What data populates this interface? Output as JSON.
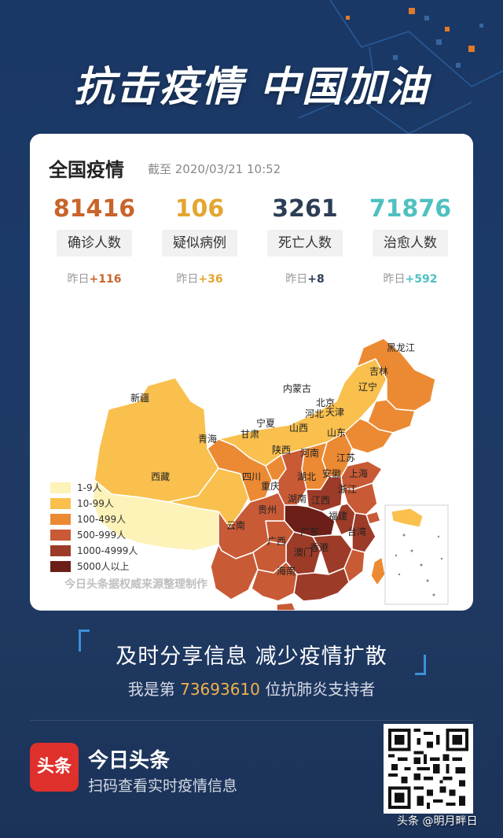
{
  "headline": "抗击疫情 中国加油",
  "card": {
    "title": "全国疫情",
    "time": "截至 2020/03/21 10:52",
    "stats": [
      {
        "value": "81416",
        "label": "确诊人数",
        "delta_prefix": "昨日",
        "delta": "+116",
        "color": "#c8642b"
      },
      {
        "value": "106",
        "label": "疑似病例",
        "delta_prefix": "昨日",
        "delta": "+36",
        "color": "#e3a630"
      },
      {
        "value": "3261",
        "label": "死亡人数",
        "delta_prefix": "昨日",
        "delta": "+8",
        "color": "#2c3e55"
      },
      {
        "value": "71876",
        "label": "治愈人数",
        "delta_prefix": "昨日",
        "delta": "+592",
        "color": "#4fc0c0"
      }
    ],
    "legend": [
      {
        "label": "1-9人",
        "color": "#fdf2b8"
      },
      {
        "label": "10-99人",
        "color": "#f9c04e"
      },
      {
        "label": "100-499人",
        "color": "#ec8a34"
      },
      {
        "label": "500-999人",
        "color": "#c85a36"
      },
      {
        "label": "1000-4999人",
        "color": "#9c3b28"
      },
      {
        "label": "5000人以上",
        "color": "#6b1f18"
      }
    ],
    "provinces": {
      "xinjiang": "新疆",
      "xizang": "西藏",
      "qinghai": "青海",
      "gansu": "甘肃",
      "neimenggu": "内蒙古",
      "heilongjiang": "黑龙江",
      "jilin": "吉林",
      "liaoning": "辽宁",
      "beijing": "北京",
      "tianjin": "天津",
      "hebei": "河北",
      "shanxi": "山西",
      "ningxia": "宁夏",
      "shandong": "山东",
      "shaanxi": "陕西",
      "henan": "河南",
      "jiangsu": "江苏",
      "anhui": "安徽",
      "shanghai": "上海",
      "sichuan": "四川",
      "chongqing": "重庆",
      "hubei": "湖北",
      "zhejiang": "浙江",
      "hunan": "湖南",
      "jiangxi": "江西",
      "guizhou": "贵州",
      "yunnan": "云南",
      "fujian": "福建",
      "guangxi": "广西",
      "guangdong": "广东",
      "taiwan": "台湾",
      "xianggang": "香港",
      "aomen": "澳门",
      "hainan": "海南"
    },
    "source": "今日头条据权威来源整理制作"
  },
  "slogan": "及时分享信息 减少疫情扩散",
  "supporter": {
    "prefix": "我是第 ",
    "number": "73693610",
    "suffix": " 位抗肺炎支持者"
  },
  "app": {
    "logo_text": "头条",
    "name": "今日头条",
    "subtitle": "扫码查看实时疫情信息"
  },
  "watermark": "头条 @明月畔日"
}
